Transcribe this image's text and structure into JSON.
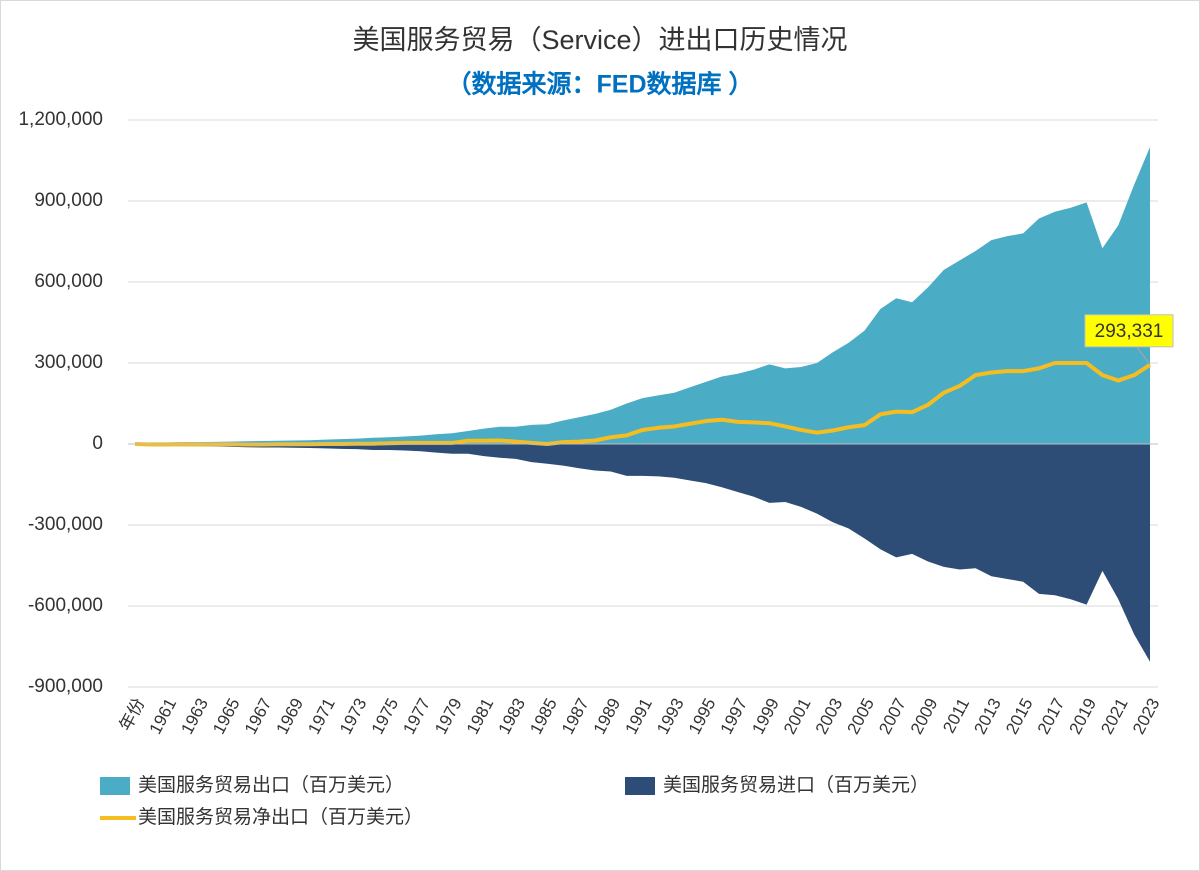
{
  "chart_data": {
    "type": "area",
    "title": "美国服务贸易（Service）进出口历史情况",
    "subtitle": "（数据来源：FED数据库 ）",
    "categories": [
      "年份",
      null,
      "1961",
      null,
      "1963",
      null,
      "1965",
      null,
      "1967",
      null,
      "1969",
      null,
      "1971",
      null,
      "1973",
      null,
      "1975",
      null,
      "1977",
      null,
      "1979",
      null,
      "1981",
      null,
      "1983",
      null,
      "1985",
      null,
      "1987",
      null,
      "1989",
      null,
      "1991",
      null,
      "1993",
      null,
      "1995",
      null,
      "1997",
      null,
      "1999",
      null,
      "2001",
      null,
      "2003",
      null,
      "2005",
      null,
      "2007",
      null,
      "2009",
      null,
      "2011",
      null,
      "2013",
      null,
      "2015",
      null,
      "2017",
      null,
      "2019",
      null,
      "2021",
      null,
      "2023"
    ],
    "series": [
      {
        "name": "美国服务贸易出口（百万美元）",
        "color": "#4bacc6",
        "kind": "area",
        "values": [
          0,
          6000,
          6000,
          7000,
          7000,
          8000,
          9000,
          10000,
          11000,
          12000,
          13000,
          14000,
          16000,
          18000,
          20000,
          23000,
          25000,
          28000,
          31000,
          36000,
          40000,
          48000,
          57000,
          64000,
          64000,
          71000,
          73000,
          87000,
          99000,
          111000,
          127000,
          150000,
          170000,
          180000,
          190000,
          210000,
          230000,
          250000,
          260000,
          275000,
          295000,
          280000,
          285000,
          300000,
          340000,
          375000,
          420000,
          500000,
          540000,
          525000,
          580000,
          645000,
          680000,
          715000,
          755000,
          770000,
          780000,
          835000,
          860000,
          875000,
          895000,
          725000,
          810000,
          960000,
          1100000
        ]
      },
      {
        "name": "美国服务贸易进口（百万美元）",
        "color": "#2e4d76",
        "kind": "area",
        "values": [
          0,
          -8000,
          -8000,
          -8000,
          -9000,
          -9000,
          -10000,
          -12000,
          -13000,
          -13000,
          -14000,
          -15000,
          -16000,
          -18000,
          -19000,
          -22000,
          -22000,
          -24000,
          -27000,
          -32000,
          -36000,
          -36000,
          -45000,
          -51000,
          -55000,
          -67000,
          -73000,
          -80000,
          -90000,
          -98000,
          -102000,
          -118000,
          -118000,
          -120000,
          -125000,
          -135000,
          -145000,
          -160000,
          -178000,
          -195000,
          -218000,
          -215000,
          -233000,
          -258000,
          -290000,
          -313000,
          -350000,
          -390000,
          -420000,
          -407000,
          -435000,
          -455000,
          -465000,
          -460000,
          -490000,
          -500000,
          -510000,
          -555000,
          -560000,
          -575000,
          -595000,
          -470000,
          -575000,
          -705000,
          -806669
        ]
      },
      {
        "name": "美国服务贸易净出口（百万美元）",
        "color": "#f5bd1f",
        "kind": "line",
        "values": [
          0,
          -2000,
          -2000,
          -1000,
          -2000,
          -1000,
          -1000,
          -2000,
          -2000,
          -1000,
          -1000,
          -1000,
          0,
          0,
          1000,
          1000,
          3000,
          4000,
          4000,
          4000,
          4000,
          12000,
          12000,
          13000,
          9000,
          4000,
          0,
          7000,
          9000,
          13000,
          25000,
          32000,
          52000,
          60000,
          65000,
          75000,
          85000,
          90000,
          82000,
          80000,
          77000,
          65000,
          52000,
          42000,
          50000,
          62000,
          70000,
          110000,
          120000,
          118000,
          145000,
          190000,
          215000,
          255000,
          265000,
          270000,
          270000,
          280000,
          300000,
          300000,
          300000,
          255000,
          235000,
          255000,
          293331
        ],
        "value_labels": [
          null,
          null,
          null,
          null,
          null,
          null,
          null,
          null,
          null,
          null,
          null,
          null,
          null,
          null,
          null,
          null,
          null,
          null,
          null,
          null,
          null,
          null,
          null,
          null,
          null,
          null,
          null,
          null,
          null,
          null,
          null,
          null,
          null,
          null,
          null,
          null,
          null,
          null,
          null,
          null,
          null,
          null,
          null,
          null,
          null,
          null,
          null,
          null,
          null,
          null,
          null,
          null,
          null,
          null,
          null,
          null,
          null,
          null,
          null,
          null,
          null,
          null,
          null,
          null,
          "293,331"
        ]
      }
    ],
    "ylim": [
      -900000,
      1200000
    ],
    "yticks": [
      {
        "value": -900000,
        "label": "-900,000"
      },
      {
        "value": -600000,
        "label": "-600,000"
      },
      {
        "value": -300000,
        "label": "-300,000"
      },
      0,
      {
        "value": 300000,
        "label": "300,000"
      },
      {
        "value": 600000,
        "label": "600,000"
      },
      {
        "value": 900000,
        "label": "900,000"
      },
      {
        "value": 1200000,
        "label": "1,200,000"
      }
    ],
    "grid": true,
    "legend": "bottom"
  }
}
